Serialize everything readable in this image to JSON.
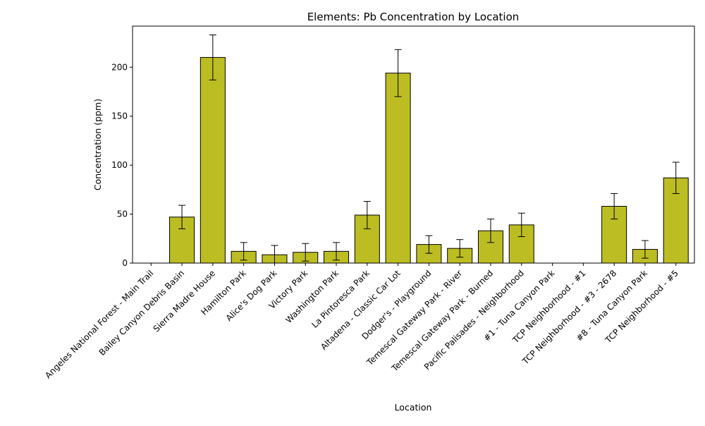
{
  "chart_data": {
    "type": "bar",
    "title": "Elements: Pb Concentration by Location",
    "xlabel": "Location",
    "ylabel": "Concentration (ppm)",
    "ylim": [
      0,
      242
    ],
    "yticks": [
      0,
      50,
      100,
      150,
      200
    ],
    "grid": false,
    "bar_color": "#bcbd22",
    "edge_color": "#000000",
    "categories": [
      "Angeles National Forest - Main Trail",
      "Bailey Canyon Debris Basin",
      "Sierra Madre House",
      "Hamilton Park",
      "Alice's Dog Park",
      "Victory Park",
      "Washington Park",
      "La Pintoresca Park",
      "Altadena - Classic Car Lot",
      "Dodger's - Playground",
      "Temescal Gateway Park - River",
      "Temescal Gateway Park - Burned",
      "Pacific Palisades - Neighborhood",
      "#1 - Tuna Canyon Park",
      "TCP Neighborhood - #1",
      "TCP Neighborhood - #3 - 2678",
      "#8 - Tuna Canyon Park",
      "TCP Neighborhood - #5"
    ],
    "values": [
      0,
      47,
      210,
      12,
      8.5,
      11,
      12,
      49,
      194,
      19,
      15,
      33,
      39,
      0,
      0,
      58,
      14,
      87
    ],
    "errors": [
      0,
      12,
      23,
      9,
      9.5,
      9,
      9,
      14,
      24,
      9,
      9,
      12,
      12,
      0,
      0,
      13,
      9,
      16
    ]
  }
}
